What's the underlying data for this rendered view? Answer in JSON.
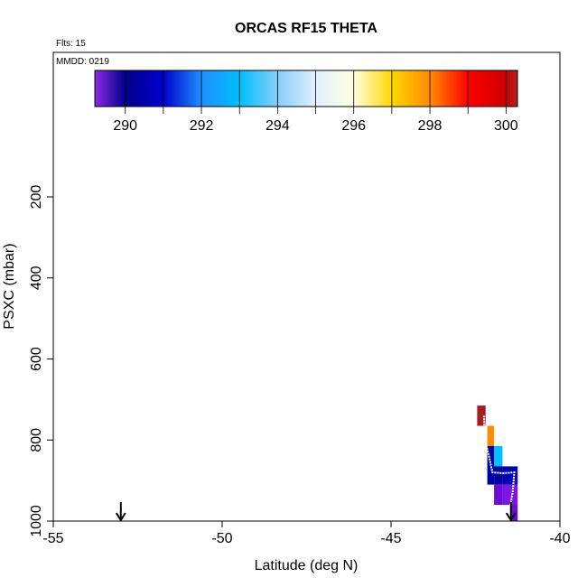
{
  "chart_data": {
    "type": "heatmap",
    "title": "ORCAS RF15 THETA",
    "flights_label": "Flts: 15",
    "date_label": "MMDD: 0219",
    "xlabel": "Latitude (deg N)",
    "ylabel": "PSXC (mbar)",
    "xlim": [
      -55,
      -40
    ],
    "ylim": [
      1000,
      0
    ],
    "x_ticks": [
      -55,
      -50,
      -45,
      -40
    ],
    "x_tick_labels": [
      "-55",
      "-50",
      "-45",
      "-40"
    ],
    "y_ticks": [
      200,
      400,
      600,
      800,
      1000
    ],
    "y_tick_labels": [
      "200",
      "400",
      "600",
      "800",
      "1000"
    ],
    "colorbar": {
      "min": 289.2,
      "max": 300.3,
      "ticks": [
        290,
        292,
        294,
        296,
        298,
        300
      ],
      "tick_labels": [
        "290",
        "292",
        "294",
        "296",
        "298",
        "300"
      ],
      "stops": [
        {
          "v": 289.2,
          "c": "#8a2be2"
        },
        {
          "v": 290.0,
          "c": "#00008b"
        },
        {
          "v": 291.0,
          "c": "#0000cd"
        },
        {
          "v": 292.0,
          "c": "#1e90ff"
        },
        {
          "v": 293.0,
          "c": "#00bfff"
        },
        {
          "v": 294.0,
          "c": "#87cefa"
        },
        {
          "v": 295.0,
          "c": "#e0f0ff"
        },
        {
          "v": 296.0,
          "c": "#ffffe0"
        },
        {
          "v": 297.0,
          "c": "#ffd700"
        },
        {
          "v": 298.0,
          "c": "#ff8c00"
        },
        {
          "v": 299.0,
          "c": "#ff0000"
        },
        {
          "v": 300.0,
          "c": "#cd0000"
        },
        {
          "v": 300.3,
          "c": "#b22222"
        }
      ]
    },
    "cells": [
      {
        "lat0": -42.45,
        "lat1": -42.2,
        "p0": 715,
        "p1": 765,
        "theta": 300.2,
        "color": "#a52020"
      },
      {
        "lat0": -42.15,
        "lat1": -41.95,
        "p0": 765,
        "p1": 815,
        "theta": 297.8,
        "color": "#ff8c00"
      },
      {
        "lat0": -41.95,
        "lat1": -41.7,
        "p0": 815,
        "p1": 865,
        "theta": 293.2,
        "color": "#00bfff"
      },
      {
        "lat0": -42.15,
        "lat1": -41.95,
        "p0": 815,
        "p1": 910,
        "theta": 290.3,
        "color": "#0000a0"
      },
      {
        "lat0": -41.95,
        "lat1": -41.7,
        "p0": 865,
        "p1": 910,
        "theta": 290.3,
        "color": "#0000a0"
      },
      {
        "lat0": -41.7,
        "lat1": -41.25,
        "p0": 865,
        "p1": 910,
        "theta": 290.6,
        "color": "#0000b4"
      },
      {
        "lat0": -41.95,
        "lat1": -41.7,
        "p0": 910,
        "p1": 960,
        "theta": 289.6,
        "color": "#6a0dd8"
      },
      {
        "lat0": -41.7,
        "lat1": -41.25,
        "p0": 910,
        "p1": 960,
        "theta": 289.5,
        "color": "#7a18e0"
      },
      {
        "lat0": -41.45,
        "lat1": -41.25,
        "p0": 960,
        "p1": 1000,
        "theta": 289.5,
        "color": "#6a0dd8"
      }
    ],
    "flight_track": [
      {
        "lat": -42.25,
        "p": 740
      },
      {
        "lat": -42.22,
        "p": 800
      },
      {
        "lat": -42.1,
        "p": 840
      },
      {
        "lat": -42.0,
        "p": 880
      },
      {
        "lat": -41.7,
        "p": 882
      },
      {
        "lat": -41.35,
        "p": 880
      },
      {
        "lat": -41.4,
        "p": 930
      },
      {
        "lat": -41.5,
        "p": 975
      },
      {
        "lat": -41.45,
        "p": 1000
      }
    ],
    "arrows": [
      {
        "lat": -53.0
      },
      {
        "lat": -41.45
      }
    ]
  }
}
